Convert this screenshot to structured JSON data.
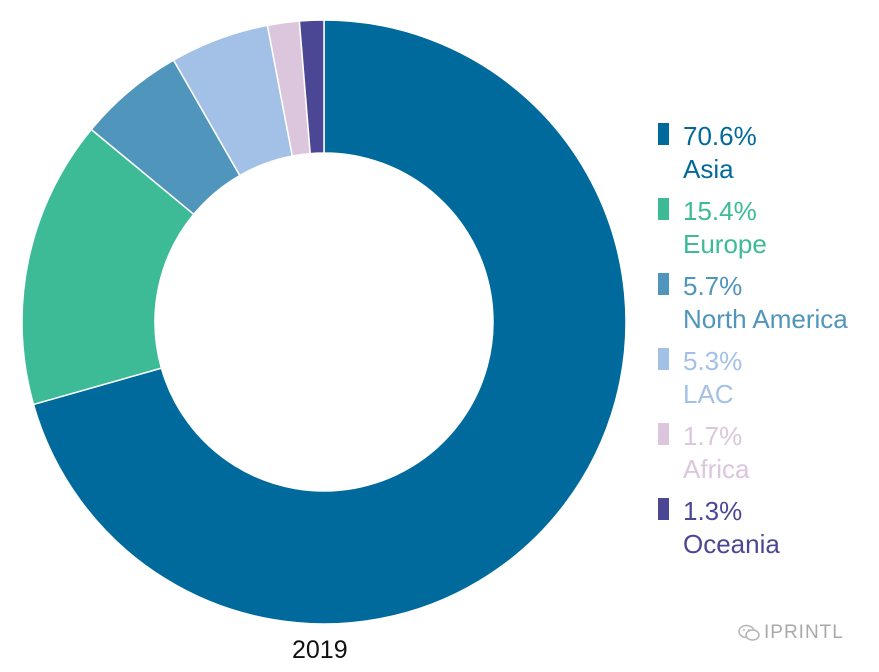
{
  "chart_data": {
    "type": "pie",
    "variant": "donut",
    "title": "",
    "caption": "2019",
    "series": [
      {
        "label": "Asia",
        "value_label": "70.6%",
        "value": 70.6,
        "color": "#006a9c"
      },
      {
        "label": "Europe",
        "value_label": "15.4%",
        "value": 15.4,
        "color": "#3dbb97"
      },
      {
        "label": "North America",
        "value_label": "5.7%",
        "value": 5.7,
        "color": "#4f95bc"
      },
      {
        "label": "LAC",
        "value_label": "5.3%",
        "value": 5.3,
        "color": "#a3c1e6"
      },
      {
        "label": "Africa",
        "value_label": "1.7%",
        "value": 1.7,
        "color": "#dcc6dd"
      },
      {
        "label": "Oceania",
        "value_label": "1.3%",
        "value": 1.3,
        "color": "#4b4794"
      }
    ],
    "legend_position": "right"
  },
  "watermark": {
    "text": "IPRINTL",
    "icon": "wechat-icon"
  }
}
